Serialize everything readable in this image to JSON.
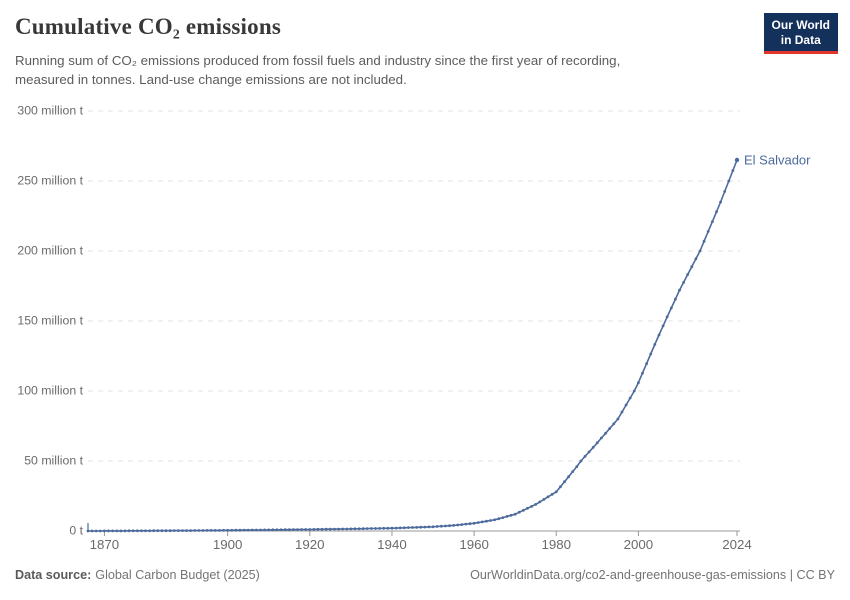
{
  "header": {
    "title": "Cumulative CO₂ emissions",
    "subtitle_line1": "Running sum of CO₂ emissions produced from fossil fuels and industry since the first year of recording,",
    "subtitle_line2": "measured in tonnes. Land-use change emissions are not included."
  },
  "logo": {
    "line1": "Our World",
    "line2": "in Data",
    "bg_color": "#14315c",
    "accent_color": "#e0362c"
  },
  "chart_data": {
    "type": "line",
    "title": "Cumulative CO₂ emissions",
    "unit": "million tonnes",
    "xlabel": "",
    "ylabel": "",
    "grid": "dashed horizontal",
    "legend_position": "end-of-line label",
    "start_year": 1866,
    "end_year": 2024,
    "xlim": [
      1866,
      2024
    ],
    "ylim_mt": [
      0,
      300
    ],
    "x_ticks": [
      1870,
      1900,
      1920,
      1940,
      1960,
      1980,
      2000,
      2024
    ],
    "y_ticks": [
      {
        "value": 0,
        "label": "0 t"
      },
      {
        "value": 50,
        "label": "50 million t"
      },
      {
        "value": 100,
        "label": "100 million t"
      },
      {
        "value": 150,
        "label": "150 million t"
      },
      {
        "value": 200,
        "label": "200 million t"
      },
      {
        "value": 250,
        "label": "250 million t"
      },
      {
        "value": 300,
        "label": "300 million t"
      }
    ],
    "series": [
      {
        "name": "El Salvador",
        "color": "#4c6a9c",
        "values_unit": "million t",
        "values": [
          0,
          0.01,
          0.02,
          0.03,
          0.05,
          0.06,
          0.07,
          0.08,
          0.09,
          0.1,
          0.11,
          0.12,
          0.13,
          0.14,
          0.15,
          0.17,
          0.18,
          0.2,
          0.21,
          0.23,
          0.24,
          0.26,
          0.27,
          0.29,
          0.3,
          0.32,
          0.34,
          0.36,
          0.38,
          0.4,
          0.42,
          0.44,
          0.46,
          0.48,
          0.5,
          0.53,
          0.56,
          0.59,
          0.62,
          0.65,
          0.68,
          0.71,
          0.74,
          0.77,
          0.8,
          0.83,
          0.86,
          0.89,
          0.92,
          0.95,
          0.98,
          1.01,
          1.04,
          1.07,
          1.1,
          1.14,
          1.18,
          1.22,
          1.26,
          1.3,
          1.34,
          1.38,
          1.42,
          1.46,
          1.5,
          1.55,
          1.6,
          1.65,
          1.7,
          1.75,
          1.8,
          1.85,
          1.9,
          1.95,
          2,
          2.1,
          2.2,
          2.3,
          2.4,
          2.5,
          2.6,
          2.7,
          2.8,
          2.9,
          3,
          3.2,
          3.4,
          3.6,
          3.8,
          4,
          4.3,
          4.6,
          4.9,
          5.2,
          5.5,
          6,
          6.5,
          7,
          7.5,
          8,
          8.8,
          9.6,
          10.4,
          11.2,
          12,
          13.4,
          14.8,
          16.2,
          17.6,
          19,
          20.8,
          22.6,
          24.4,
          26.2,
          28,
          31.6,
          35.2,
          38.8,
          42.4,
          46,
          50,
          53.25,
          56.5,
          59.75,
          63,
          66.4,
          69.8,
          73.2,
          76.6,
          80,
          85,
          90,
          95,
          100,
          106,
          112.8,
          119.6,
          126.4,
          133.2,
          140,
          146.5,
          153,
          159.3,
          165.6,
          172,
          177.6,
          183.2,
          188.8,
          194.4,
          200,
          207,
          214,
          221,
          228,
          235,
          242.5,
          250,
          257.5,
          265
        ]
      }
    ]
  },
  "axis_colors": {
    "grid": "#e2e2e2",
    "axis_line": "#999999",
    "tick_label": "#6b6b6b"
  },
  "footer": {
    "source_label": "Data source:",
    "source_value": "Global Carbon Budget (2025)",
    "link": "OurWorldinData.org/co2-and-greenhouse-gas-emissions | CC BY"
  }
}
